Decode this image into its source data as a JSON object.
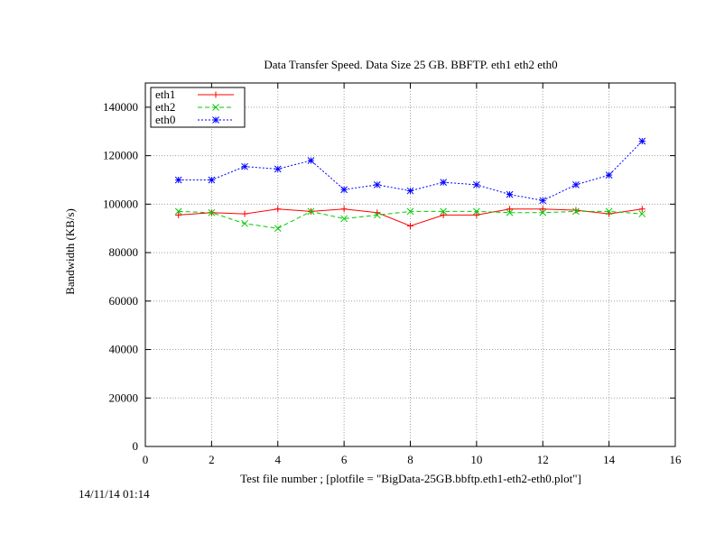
{
  "chart_data": {
    "type": "line",
    "title": "Data Transfer Speed. Data Size 25 GB. BBFTP. eth1 eth2 eth0",
    "xlabel": "Test file number ; [plotfile = \"BigData-25GB.bbftp.eth1-eth2-eth0.plot\"]",
    "ylabel": "Bandwidth (KB/s)",
    "xlim": [
      0,
      16
    ],
    "ylim": [
      0,
      150000
    ],
    "xticks": [
      0,
      2,
      4,
      6,
      8,
      10,
      12,
      14,
      16
    ],
    "yticks": [
      0,
      20000,
      40000,
      60000,
      80000,
      100000,
      120000,
      140000
    ],
    "grid": true,
    "legend_position": "top-left",
    "x": [
      1,
      2,
      3,
      4,
      5,
      6,
      7,
      8,
      9,
      10,
      11,
      12,
      13,
      14,
      15
    ],
    "series": [
      {
        "name": "eth1",
        "color": "#ff0000",
        "dash": "solid",
        "marker": "plus",
        "values": [
          95500,
          96500,
          96000,
          98000,
          97000,
          98000,
          96500,
          91000,
          95500,
          95500,
          98000,
          98000,
          97500,
          96000,
          98000
        ]
      },
      {
        "name": "eth2",
        "color": "#00cc00",
        "dash": "dashed",
        "marker": "cross",
        "values": [
          97000,
          96500,
          92000,
          90000,
          97000,
          94000,
          95500,
          97000,
          97000,
          97000,
          96500,
          96500,
          97000,
          97000,
          96000
        ]
      },
      {
        "name": "eth0",
        "color": "#0000ff",
        "dash": "dotted",
        "marker": "star",
        "values": [
          110000,
          110000,
          115500,
          114500,
          118000,
          106000,
          108000,
          105500,
          109000,
          108000,
          104000,
          101500,
          108000,
          112000,
          126000
        ]
      }
    ]
  },
  "timestamp": "14/11/14 01:14"
}
